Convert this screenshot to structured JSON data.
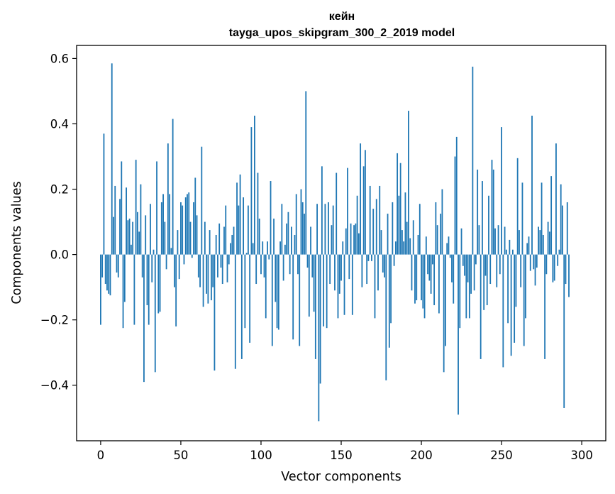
{
  "chart_data": {
    "type": "bar",
    "title": "кейн",
    "subtitle": "tayga_upos_skipgram_300_2_2019 model",
    "xlabel": "Vector components",
    "ylabel": "Components values",
    "xlim": [
      -15,
      315
    ],
    "ylim": [
      -0.57,
      0.64
    ],
    "xticks": [
      0,
      50,
      100,
      150,
      200,
      250,
      300
    ],
    "xtick_labels": [
      "0",
      "50",
      "100",
      "150",
      "200",
      "250",
      "300"
    ],
    "yticks": [
      -0.4,
      -0.2,
      0.0,
      0.2,
      0.4,
      0.6
    ],
    "ytick_labels": [
      "−0.4",
      "−0.2",
      "0.0",
      "0.2",
      "0.4",
      "0.6"
    ],
    "bar_color": "#1f77b4",
    "grid": false,
    "values": [
      -0.215,
      -0.07,
      0.37,
      -0.09,
      -0.11,
      -0.12,
      -0.125,
      0.585,
      0.115,
      0.21,
      -0.055,
      -0.07,
      0.17,
      0.285,
      -0.225,
      -0.145,
      0.205,
      0.105,
      0.11,
      0.03,
      0.1,
      -0.215,
      0.29,
      0.13,
      0.07,
      0.215,
      -0.07,
      -0.39,
      0.12,
      -0.155,
      -0.215,
      0.155,
      -0.085,
      0.015,
      -0.36,
      0.285,
      -0.18,
      -0.175,
      0.16,
      0.185,
      0.1,
      -0.045,
      0.34,
      0.185,
      0.02,
      0.415,
      -0.1,
      -0.22,
      0.075,
      -0.075,
      0.16,
      0.15,
      -0.03,
      0.175,
      0.185,
      0.19,
      0.1,
      -0.01,
      0.16,
      0.235,
      0.12,
      -0.07,
      -0.1,
      0.33,
      -0.16,
      0.1,
      -0.12,
      -0.15,
      0.075,
      -0.14,
      -0.1,
      -0.355,
      0.06,
      -0.07,
      0.095,
      -0.04,
      -0.09,
      0.085,
      0.15,
      -0.085,
      -0.03,
      0.035,
      0.06,
      0.085,
      -0.35,
      0.22,
      0.15,
      0.245,
      -0.32,
      0.175,
      -0.225,
      0.005,
      0.15,
      -0.27,
      0.39,
      0.035,
      0.425,
      -0.09,
      0.25,
      0.11,
      -0.06,
      0.04,
      -0.07,
      -0.195,
      0.04,
      -0.015,
      0.225,
      -0.28,
      0.11,
      -0.145,
      -0.225,
      -0.23,
      0.04,
      0.155,
      -0.08,
      0.03,
      0.095,
      0.13,
      -0.06,
      0.085,
      -0.26,
      0.06,
      0.185,
      -0.06,
      -0.28,
      0.2,
      0.16,
      0.125,
      0.5,
      -0.04,
      -0.19,
      0.085,
      -0.07,
      -0.175,
      -0.32,
      0.155,
      -0.51,
      -0.395,
      0.27,
      -0.22,
      0.155,
      -0.225,
      0.16,
      -0.09,
      0.09,
      0.15,
      -0.11,
      0.25,
      -0.195,
      -0.12,
      -0.08,
      0.04,
      -0.185,
      0.08,
      0.265,
      -0.075,
      0.095,
      -0.185,
      0.09,
      0.095,
      0.18,
      0.065,
      0.34,
      -0.1,
      0.27,
      0.32,
      -0.09,
      -0.02,
      0.21,
      -0.02,
      0.14,
      -0.195,
      0.17,
      -0.11,
      0.21,
      0.075,
      -0.055,
      -0.07,
      -0.385,
      0.125,
      -0.285,
      -0.21,
      0.16,
      -0.035,
      0.04,
      0.31,
      0.18,
      0.28,
      0.075,
      0.04,
      0.19,
      0.1,
      0.44,
      0.05,
      -0.11,
      0.105,
      -0.15,
      -0.14,
      0.06,
      0.155,
      -0.14,
      -0.165,
      -0.195,
      0.055,
      -0.06,
      -0.08,
      -0.12,
      -0.03,
      -0.155,
      0.16,
      0.09,
      -0.18,
      0.125,
      0.2,
      -0.36,
      -0.28,
      0.035,
      0.055,
      -0.01,
      -0.085,
      -0.15,
      0.3,
      0.36,
      -0.49,
      -0.225,
      0.08,
      -0.035,
      -0.065,
      -0.195,
      -0.085,
      -0.195,
      -0.12,
      0.575,
      -0.11,
      -0.03,
      0.26,
      0.09,
      -0.32,
      0.225,
      -0.17,
      -0.065,
      -0.155,
      0.18,
      -0.09,
      0.29,
      0.26,
      0.08,
      -0.1,
      0.09,
      -0.06,
      0.39,
      -0.345,
      0.085,
      0.015,
      -0.21,
      0.045,
      -0.31,
      0.015,
      -0.27,
      -0.16,
      0.295,
      0.075,
      -0.1,
      0.22,
      -0.28,
      -0.195,
      0.035,
      0.055,
      -0.05,
      0.425,
      -0.045,
      -0.095,
      -0.04,
      0.085,
      0.075,
      0.22,
      0.06,
      -0.32,
      -0.06,
      0.1,
      0.07,
      0.24,
      -0.085,
      -0.08,
      0.34,
      -0.035,
      0.015,
      0.215,
      0.15,
      -0.47,
      -0.09,
      0.16,
      -0.13
    ]
  }
}
